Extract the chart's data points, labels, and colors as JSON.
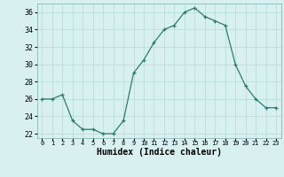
{
  "x": [
    0,
    1,
    2,
    3,
    4,
    5,
    6,
    7,
    8,
    9,
    10,
    11,
    12,
    13,
    14,
    15,
    16,
    17,
    18,
    19,
    20,
    21,
    22,
    23
  ],
  "y": [
    26,
    26,
    26.5,
    23.5,
    22.5,
    22.5,
    22,
    22,
    23.5,
    29,
    30.5,
    32.5,
    34,
    34.5,
    36,
    36.5,
    35.5,
    35,
    34.5,
    30,
    27.5,
    26,
    25,
    25
  ],
  "xlabel": "Humidex (Indice chaleur)",
  "ylim": [
    21.5,
    37
  ],
  "xlim": [
    -0.5,
    23.5
  ],
  "yticks": [
    22,
    24,
    26,
    28,
    30,
    32,
    34,
    36
  ],
  "line_color": "#2d7a6e",
  "marker": "+",
  "bg_color": "#d9f0f0",
  "grid_color": "#b8dede",
  "axis_bg": "#d9f0f0"
}
